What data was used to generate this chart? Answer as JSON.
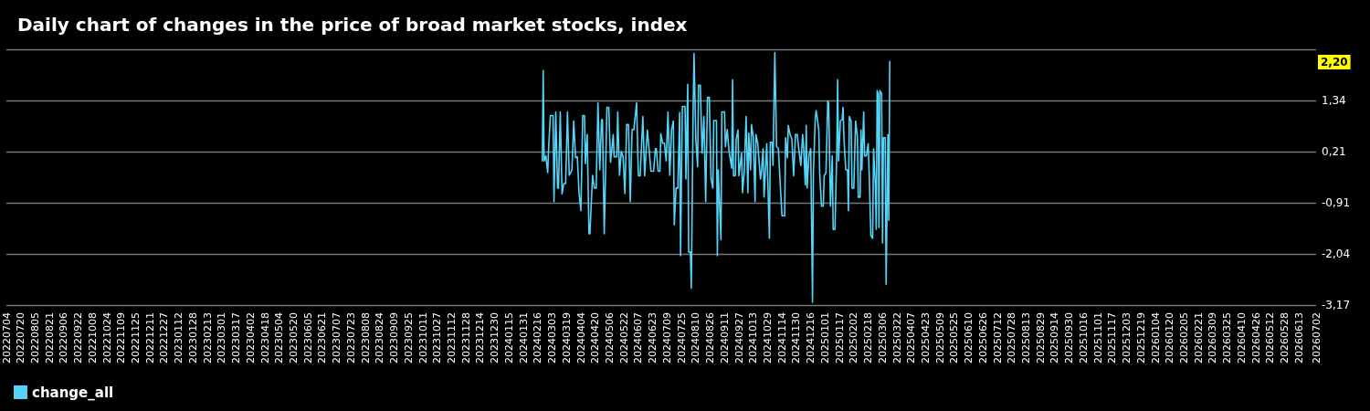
{
  "chart_data": {
    "type": "line",
    "title": "Daily chart of changes in the price of broad market stocks, index",
    "x": [
      "2024-02-21",
      "2024-02-22",
      "2024-02-23",
      "2024-02-25",
      "2024-02-27",
      "2024-02-28",
      "2024-03-01",
      "2024-03-04",
      "2024-03-05",
      "2024-03-07",
      "2024-03-09",
      "2024-03-10",
      "2024-03-12",
      "2024-03-14",
      "2024-03-16",
      "2024-03-18",
      "2024-03-20",
      "2024-03-22",
      "2024-03-25",
      "2024-03-27",
      "2024-03-29",
      "2024-03-31",
      "2024-04-02",
      "2024-04-04",
      "2024-04-06",
      "2024-04-08",
      "2024-04-09",
      "2024-04-11",
      "2024-04-13",
      "2024-04-14",
      "2024-04-17",
      "2024-04-19",
      "2024-04-21",
      "2024-04-23",
      "2024-04-25",
      "2024-04-27",
      "2024-04-28",
      "2024-04-30",
      "2024-05-03",
      "2024-05-05",
      "2024-05-07",
      "2024-05-10",
      "2024-05-11",
      "2024-05-14",
      "2024-05-15",
      "2024-05-17",
      "2024-05-19",
      "2024-05-21",
      "2024-05-23",
      "2024-05-25",
      "2024-05-27",
      "2024-05-29",
      "2024-05-31",
      "2024-06-02",
      "2024-06-05",
      "2024-06-07",
      "2024-06-09",
      "2024-06-12",
      "2024-06-14",
      "2024-06-17",
      "2024-06-19",
      "2024-06-21",
      "2024-06-24",
      "2024-06-26",
      "2024-06-27",
      "2024-06-29",
      "2024-07-01",
      "2024-07-02",
      "2024-07-04",
      "2024-07-06",
      "2024-07-08",
      "2024-07-10",
      "2024-07-12",
      "2024-07-14",
      "2024-07-16",
      "2024-07-17",
      "2024-07-19",
      "2024-07-21",
      "2024-07-23",
      "2024-07-24",
      "2024-07-26",
      "2024-07-29",
      "2024-07-30",
      "2024-08-01",
      "2024-08-02",
      "2024-08-04",
      "2024-08-05",
      "2024-08-07",
      "2024-08-08",
      "2024-08-10",
      "2024-08-12",
      "2024-08-13",
      "2024-08-15",
      "2024-08-17",
      "2024-08-19",
      "2024-08-21",
      "2024-08-23",
      "2024-08-25",
      "2024-08-27",
      "2024-08-29",
      "2024-08-30",
      "2024-09-02",
      "2024-09-03",
      "2024-09-04",
      "2024-09-07",
      "2024-09-08",
      "2024-09-11",
      "2024-09-12",
      "2024-09-14",
      "2024-09-16",
      "2024-09-19",
      "2024-09-20",
      "2024-09-21",
      "2024-09-23",
      "2024-09-24",
      "2024-09-26",
      "2024-09-27",
      "2024-09-30",
      "2024-10-01",
      "2024-10-03",
      "2024-10-05",
      "2024-10-07",
      "2024-10-08",
      "2024-10-10",
      "2024-10-11",
      "2024-10-13",
      "2024-10-15",
      "2024-10-16",
      "2024-10-18",
      "2024-10-21",
      "2024-10-22",
      "2024-10-24",
      "2024-10-25",
      "2024-10-27",
      "2024-10-28",
      "2024-10-31",
      "2024-11-01",
      "2024-11-03",
      "2024-11-04",
      "2024-11-06",
      "2024-11-08",
      "2024-11-10",
      "2024-11-12",
      "2024-11-14",
      "2024-11-17",
      "2024-11-18",
      "2024-11-20",
      "2024-11-21",
      "2024-11-23",
      "2024-11-25",
      "2024-11-27",
      "2024-11-29",
      "2024-12-01",
      "2024-12-03",
      "2024-12-05",
      "2024-12-07",
      "2024-12-08",
      "2024-12-10",
      "2024-12-11",
      "2024-12-12",
      "2024-12-14",
      "2024-12-16",
      "2024-12-18",
      "2024-12-19",
      "2024-12-21",
      "2024-12-22",
      "2024-12-23",
      "2024-12-25",
      "2024-12-26",
      "2024-12-28",
      "2024-12-30",
      "2024-12-31",
      "2025-01-02",
      "2025-01-04",
      "2025-01-05",
      "2025-01-07",
      "2025-01-09",
      "2025-01-10",
      "2025-01-12",
      "2025-01-14",
      "2025-01-15",
      "2025-01-16",
      "2025-01-18",
      "2025-01-20",
      "2025-01-21",
      "2025-01-22",
      "2025-01-24",
      "2025-01-26",
      "2025-01-27",
      "2025-01-28",
      "2025-01-30",
      "2025-01-31",
      "2025-02-02",
      "2025-02-04",
      "2025-02-06",
      "2025-02-07",
      "2025-02-09",
      "2025-02-10",
      "2025-02-11",
      "2025-02-13",
      "2025-02-14",
      "2025-02-16",
      "2025-02-18",
      "2025-02-19",
      "2025-02-21",
      "2025-02-23",
      "2025-02-24",
      "2025-02-26",
      "2025-02-27",
      "2025-02-28",
      "2025-03-01",
      "2025-03-02",
      "2025-03-03",
      "2025-03-05",
      "2025-03-06",
      "2025-03-07",
      "2025-03-09",
      "2025-03-10",
      "2025-03-12",
      "2025-03-13",
      "2025-03-14"
    ],
    "series": [
      {
        "name": "change_all",
        "color": "#55d4f7",
        "values": [
          0.01,
          2.0,
          0.01,
          0.12,
          -0.25,
          0.28,
          1.01,
          1.01,
          -0.89,
          1.09,
          -0.59,
          -0.59,
          1.09,
          -0.72,
          -0.49,
          -0.49,
          1.09,
          -0.31,
          -0.19,
          0.89,
          0.08,
          0.1,
          -0.72,
          -1.09,
          1.01,
          1.01,
          -0.05,
          0.59,
          -1.6,
          -1.6,
          -0.31,
          -0.59,
          -0.59,
          1.29,
          -0.19,
          0.92,
          0.92,
          -1.6,
          1.19,
          1.19,
          -0.02,
          0.59,
          0.1,
          0.1,
          1.09,
          -0.31,
          0.22,
          0.1,
          -0.71,
          0.81,
          0.81,
          -0.89,
          0.7,
          0.7,
          1.29,
          -0.32,
          -0.32,
          0.99,
          -0.32,
          0.69,
          0.25,
          -0.22,
          -0.22,
          0.28,
          0.28,
          -0.22,
          -0.22,
          0.61,
          0.4,
          0.4,
          0.01,
          1.09,
          -0.31,
          0.7,
          0.89,
          -1.4,
          -0.59,
          -0.59,
          1.08,
          -2.08,
          1.21,
          1.21,
          -0.39,
          1.7,
          -2.0,
          -2.0,
          -2.8,
          1.09,
          2.38,
          0.49,
          -0.12,
          1.68,
          1.68,
          0.18,
          0.99,
          -0.89,
          1.41,
          1.41,
          -0.39,
          -0.59,
          0.9,
          0.9,
          -2.08,
          -0.19,
          -1.73,
          1.09,
          1.09,
          0.32,
          0.7,
          0.22,
          -0.15,
          1.8,
          -0.32,
          -0.32,
          0.49,
          0.69,
          -0.32,
          0.18,
          -0.69,
          -0.22,
          0.99,
          -0.69,
          0.62,
          -0.19,
          0.81,
          0.55,
          -0.89,
          0.59,
          0.39,
          -0.39,
          -0.25,
          0.28,
          -0.79,
          -0.02,
          0.39,
          -1.7,
          0.42,
          0.42,
          -0.09,
          2.4,
          0.32,
          0.28,
          -0.49,
          -1.2,
          -1.2,
          0.52,
          0.08,
          0.79,
          0.59,
          0.49,
          -0.32,
          0.59,
          0.59,
          0.22,
          -0.09,
          0.59,
          0.35,
          -0.52,
          0.79,
          -0.59,
          0.12,
          0.28,
          -3.11,
          -0.25,
          0.92,
          1.12,
          0.99,
          0.69,
          -0.25,
          -0.99,
          -0.99,
          -0.32,
          -0.25,
          1.33,
          1.29,
          -0.99,
          0.12,
          -1.5,
          -1.5,
          0.18,
          1.8,
          0.01,
          0.89,
          0.92,
          1.19,
          0.52,
          -0.19,
          -0.19,
          -1.09,
          0.99,
          0.89,
          -0.59,
          -0.59,
          0.89,
          0.55,
          -0.79,
          -0.79,
          0.69,
          -0.19,
          1.09,
          0.12,
          0.12,
          0.39,
          -0.19,
          -1.63,
          -1.7,
          0.28,
          -0.52,
          -1.5,
          1.56,
          1.49,
          -1.46,
          1.56,
          1.49,
          -1.8,
          0.52,
          0.52,
          -2.71,
          0.59,
          -1.3,
          2.2
        ]
      }
    ],
    "xlim": [
      "2022-07-04",
      "2026-07-02"
    ],
    "xticks": [
      {
        "value": "2022-07-04",
        "label": "20220704"
      },
      {
        "value": "2022-07-20",
        "label": "20220720"
      },
      {
        "value": "2022-08-05",
        "label": "20220805"
      },
      {
        "value": "2022-08-21",
        "label": "20220821"
      },
      {
        "value": "2022-09-06",
        "label": "20220906"
      },
      {
        "value": "2022-09-22",
        "label": "20220922"
      },
      {
        "value": "2022-10-08",
        "label": "20221008"
      },
      {
        "value": "2022-10-24",
        "label": "20221024"
      },
      {
        "value": "2022-11-09",
        "label": "20221109"
      },
      {
        "value": "2022-11-25",
        "label": "20221125"
      },
      {
        "value": "2022-12-11",
        "label": "20221211"
      },
      {
        "value": "2022-12-27",
        "label": "20221227"
      },
      {
        "value": "2023-01-12",
        "label": "20230112"
      },
      {
        "value": "2023-01-28",
        "label": "20230128"
      },
      {
        "value": "2023-02-13",
        "label": "20230213"
      },
      {
        "value": "2023-03-01",
        "label": "20230301"
      },
      {
        "value": "2023-03-17",
        "label": "20230317"
      },
      {
        "value": "2023-04-02",
        "label": "20230402"
      },
      {
        "value": "2023-04-18",
        "label": "20230418"
      },
      {
        "value": "2023-05-04",
        "label": "20230504"
      },
      {
        "value": "2023-05-20",
        "label": "20230520"
      },
      {
        "value": "2023-06-05",
        "label": "20230605"
      },
      {
        "value": "2023-06-21",
        "label": "20230621"
      },
      {
        "value": "2023-07-07",
        "label": "20230707"
      },
      {
        "value": "2023-07-23",
        "label": "20230723"
      },
      {
        "value": "2023-08-08",
        "label": "20230808"
      },
      {
        "value": "2023-08-24",
        "label": "20230824"
      },
      {
        "value": "2023-09-09",
        "label": "20230909"
      },
      {
        "value": "2023-09-25",
        "label": "20230925"
      },
      {
        "value": "2023-10-11",
        "label": "20231011"
      },
      {
        "value": "2023-10-27",
        "label": "20231027"
      },
      {
        "value": "2023-11-12",
        "label": "20231112"
      },
      {
        "value": "2023-11-28",
        "label": "20231128"
      },
      {
        "value": "2023-12-14",
        "label": "20231214"
      },
      {
        "value": "2023-12-30",
        "label": "20231230"
      },
      {
        "value": "2024-01-15",
        "label": "20240115"
      },
      {
        "value": "2024-01-31",
        "label": "20240131"
      },
      {
        "value": "2024-02-16",
        "label": "20240216"
      },
      {
        "value": "2024-03-03",
        "label": "20240303"
      },
      {
        "value": "2024-03-19",
        "label": "20240319"
      },
      {
        "value": "2024-04-04",
        "label": "20240404"
      },
      {
        "value": "2024-04-20",
        "label": "20240420"
      },
      {
        "value": "2024-05-06",
        "label": "20240506"
      },
      {
        "value": "2024-05-22",
        "label": "20240522"
      },
      {
        "value": "2024-06-07",
        "label": "20240607"
      },
      {
        "value": "2024-06-23",
        "label": "20240623"
      },
      {
        "value": "2024-07-09",
        "label": "20240709"
      },
      {
        "value": "2024-07-25",
        "label": "20240725"
      },
      {
        "value": "2024-08-10",
        "label": "20240810"
      },
      {
        "value": "2024-08-26",
        "label": "20240826"
      },
      {
        "value": "2024-09-11",
        "label": "20240911"
      },
      {
        "value": "2024-09-27",
        "label": "20240927"
      },
      {
        "value": "2024-10-13",
        "label": "20241013"
      },
      {
        "value": "2024-10-29",
        "label": "20241029"
      },
      {
        "value": "2024-11-14",
        "label": "20241114"
      },
      {
        "value": "2024-11-30",
        "label": "20241130"
      },
      {
        "value": "2024-12-16",
        "label": "20241216"
      },
      {
        "value": "2025-01-01",
        "label": "20250101"
      },
      {
        "value": "2025-01-17",
        "label": "20250117"
      },
      {
        "value": "2025-02-02",
        "label": "20250202"
      },
      {
        "value": "2025-02-18",
        "label": "20250218"
      },
      {
        "value": "2025-03-06",
        "label": "20250306"
      },
      {
        "value": "2025-03-22",
        "label": "20250322"
      },
      {
        "value": "2025-04-07",
        "label": "20250407"
      },
      {
        "value": "2025-04-23",
        "label": "20250423"
      },
      {
        "value": "2025-05-09",
        "label": "20250509"
      },
      {
        "value": "2025-05-25",
        "label": "20250525"
      },
      {
        "value": "2025-06-10",
        "label": "20250610"
      },
      {
        "value": "2025-06-26",
        "label": "20250626"
      },
      {
        "value": "2025-07-12",
        "label": "20250712"
      },
      {
        "value": "2025-07-28",
        "label": "20250728"
      },
      {
        "value": "2025-08-13",
        "label": "20250813"
      },
      {
        "value": "2025-08-29",
        "label": "20250829"
      },
      {
        "value": "2025-09-14",
        "label": "20250914"
      },
      {
        "value": "2025-09-30",
        "label": "20250930"
      },
      {
        "value": "2025-10-16",
        "label": "20251016"
      },
      {
        "value": "2025-11-01",
        "label": "20251101"
      },
      {
        "value": "2025-11-17",
        "label": "20251117"
      },
      {
        "value": "2025-12-03",
        "label": "20251203"
      },
      {
        "value": "2025-12-19",
        "label": "20251219"
      },
      {
        "value": "2026-01-04",
        "label": "20260104"
      },
      {
        "value": "2026-01-20",
        "label": "20260120"
      },
      {
        "value": "2026-02-05",
        "label": "20260205"
      },
      {
        "value": "2026-02-21",
        "label": "20260221"
      },
      {
        "value": "2026-03-09",
        "label": "20260309"
      },
      {
        "value": "2026-03-25",
        "label": "20260325"
      },
      {
        "value": "2026-04-10",
        "label": "20260410"
      },
      {
        "value": "2026-04-26",
        "label": "20260426"
      },
      {
        "value": "2026-05-12",
        "label": "20260512"
      },
      {
        "value": "2026-05-28",
        "label": "20260528"
      },
      {
        "value": "2026-06-13",
        "label": "20260613"
      },
      {
        "value": "2026-07-02",
        "label": "20260702"
      }
    ],
    "ylim": [
      -3.17,
      2.47
    ],
    "yticks": [
      {
        "value": -3.17,
        "label": "-3,17"
      },
      {
        "value": -2.04,
        "label": "-2,04"
      },
      {
        "value": -0.91,
        "label": "-0,91"
      },
      {
        "value": 0.21,
        "label": "0,21"
      },
      {
        "value": 1.34,
        "label": "1,34"
      },
      {
        "value": 2.47,
        "label": null
      }
    ],
    "annotations": [
      "2,20"
    ],
    "grid": "y",
    "legend": "bottom left",
    "marker": "none",
    "line_style": "solid"
  }
}
